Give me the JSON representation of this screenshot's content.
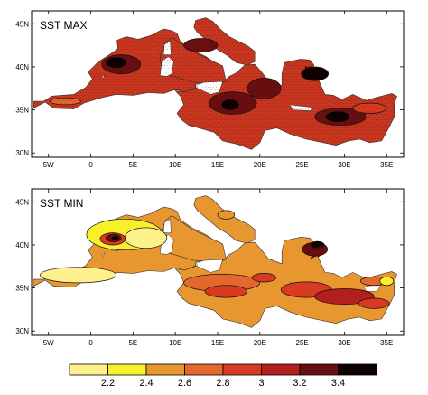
{
  "figure": {
    "panels": [
      {
        "id": "max",
        "title": "SST MAX",
        "fill": "#c8361f",
        "zones": [
          {
            "band": 6,
            "lon": 3.6,
            "lat": 40.3,
            "rlon": 2.3,
            "rlat": 1.1
          },
          {
            "band": 7,
            "lon": 3.0,
            "lat": 40.5,
            "rlon": 1.2,
            "rlat": 0.6
          },
          {
            "band": 6,
            "lon": 16.8,
            "lat": 35.8,
            "rlon": 2.8,
            "rlat": 1.3
          },
          {
            "band": 7,
            "lon": 16.5,
            "lat": 35.6,
            "rlon": 1.0,
            "rlat": 0.6
          },
          {
            "band": 6,
            "lon": 29.5,
            "lat": 34.2,
            "rlon": 3.0,
            "rlat": 1.0
          },
          {
            "band": 7,
            "lon": 29.2,
            "lat": 34.2,
            "rlon": 1.4,
            "rlat": 0.6
          },
          {
            "band": 7,
            "lon": 26.5,
            "lat": 39.2,
            "rlon": 1.6,
            "rlat": 0.8
          },
          {
            "band": 6,
            "lon": 20.5,
            "lat": 37.5,
            "rlon": 2.0,
            "rlat": 1.2
          },
          {
            "band": 4,
            "lon": 33.0,
            "lat": 35.2,
            "rlon": 2.0,
            "rlat": 0.6
          },
          {
            "band": 3,
            "lon": -3.0,
            "lat": 36.0,
            "rlon": 1.8,
            "rlat": 0.4
          },
          {
            "band": 6,
            "lon": 13.0,
            "lat": 42.5,
            "rlon": 2.0,
            "rlat": 0.8
          }
        ]
      },
      {
        "id": "min",
        "title": "SST MIN",
        "fill": "#e8962f",
        "zones": [
          {
            "band": 0,
            "lon": -1.5,
            "lat": 36.5,
            "rlon": 4.5,
            "rlat": 0.9
          },
          {
            "band": 1,
            "lon": 4.0,
            "lat": 41.2,
            "rlon": 4.5,
            "rlat": 1.8
          },
          {
            "band": 0,
            "lon": 6.5,
            "lat": 40.8,
            "rlon": 2.5,
            "rlat": 1.2
          },
          {
            "band": 4,
            "lon": 2.6,
            "lat": 40.7,
            "rlon": 1.5,
            "rlat": 0.7
          },
          {
            "band": 6,
            "lon": 2.7,
            "lat": 40.8,
            "rlon": 0.9,
            "rlat": 0.45
          },
          {
            "band": 7,
            "lon": 2.9,
            "lat": 40.8,
            "rlon": 0.4,
            "rlat": 0.22
          },
          {
            "band": 3,
            "lon": 15.5,
            "lat": 35.6,
            "rlon": 4.5,
            "rlat": 1.0
          },
          {
            "band": 4,
            "lon": 16.0,
            "lat": 34.6,
            "rlon": 2.5,
            "rlat": 0.7
          },
          {
            "band": 4,
            "lon": 25.5,
            "lat": 34.8,
            "rlon": 3.0,
            "rlat": 0.9
          },
          {
            "band": 5,
            "lon": 30.0,
            "lat": 34.0,
            "rlon": 3.5,
            "rlat": 0.9
          },
          {
            "band": 4,
            "lon": 33.5,
            "lat": 33.2,
            "rlon": 1.8,
            "rlat": 0.6
          },
          {
            "band": 6,
            "lon": 26.5,
            "lat": 39.5,
            "rlon": 1.5,
            "rlat": 0.8
          },
          {
            "band": 7,
            "lon": 26.8,
            "lat": 40.0,
            "rlon": 0.8,
            "rlat": 0.4
          },
          {
            "band": 4,
            "lon": 20.5,
            "lat": 36.2,
            "rlon": 1.4,
            "rlat": 0.5
          },
          {
            "band": 3,
            "lon": 33.5,
            "lat": 35.8,
            "rlon": 1.6,
            "rlat": 0.5
          },
          {
            "band": 2,
            "lon": 16.0,
            "lat": 43.5,
            "rlon": 1.0,
            "rlat": 0.5
          },
          {
            "band": 1,
            "lon": 35.0,
            "lat": 35.8,
            "rlon": 0.8,
            "rlat": 0.5
          }
        ]
      }
    ],
    "lon_ticks": [
      {
        "value": -5,
        "label": "5W"
      },
      {
        "value": 0,
        "label": "0"
      },
      {
        "value": 5,
        "label": "5E"
      },
      {
        "value": 10,
        "label": "10E"
      },
      {
        "value": 15,
        "label": "15E"
      },
      {
        "value": 20,
        "label": "20E"
      },
      {
        "value": 25,
        "label": "25E"
      },
      {
        "value": 30,
        "label": "30E"
      },
      {
        "value": 35,
        "label": "35E"
      }
    ],
    "lat_ticks": [
      {
        "value": 30,
        "label": "30N"
      },
      {
        "value": 35,
        "label": "35N"
      },
      {
        "value": 40,
        "label": "40N"
      },
      {
        "value": 45,
        "label": "45N"
      }
    ],
    "extent": {
      "lon": [
        -7,
        37
      ],
      "lat": [
        29.5,
        46.5
      ]
    },
    "colorbar": {
      "labels": [
        "2.2",
        "2.4",
        "2.6",
        "2.8",
        "3",
        "3.2",
        "3.4"
      ],
      "colors": [
        "#fef08a",
        "#f8f02a",
        "#e8962f",
        "#e4672d",
        "#d83a22",
        "#b31f1d",
        "#6a0f11",
        "#0d0000"
      ]
    },
    "band_colors": [
      "#fef08a",
      "#f8f02a",
      "#e8962f",
      "#e4672d",
      "#d83a22",
      "#b31f1d",
      "#6a0f11",
      "#0d0000"
    ]
  }
}
